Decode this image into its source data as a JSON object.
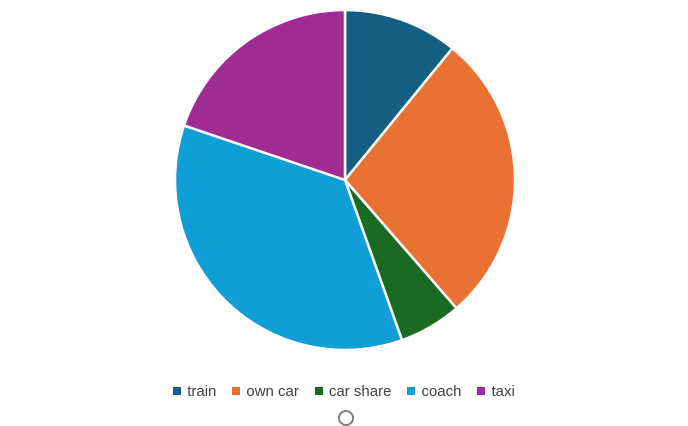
{
  "chart_data": {
    "type": "pie",
    "categories": [
      "train",
      "own car",
      "car share",
      "coach",
      "taxi"
    ],
    "values": [
      11,
      28,
      6,
      36,
      20
    ],
    "colors": [
      "#156082",
      "#e97132",
      "#196b24",
      "#0f9ed5",
      "#a02b93"
    ],
    "title": "",
    "legend_position": "bottom",
    "start_angle_deg": 0,
    "direction": "clockwise"
  }
}
